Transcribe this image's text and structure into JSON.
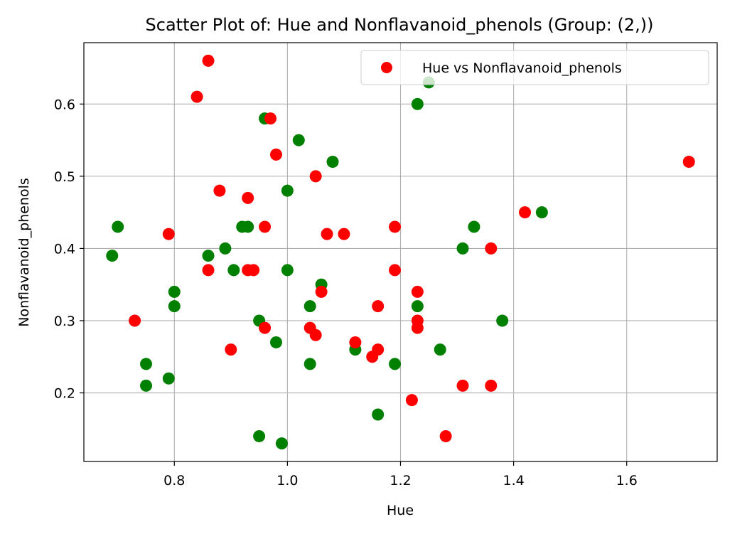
{
  "chart_data": {
    "type": "scatter",
    "title": "Scatter Plot of: Hue and Nonflavanoid_phenols (Group: (2,))",
    "xlabel": "Hue",
    "ylabel": "Nonflavanoid_phenols",
    "xlim": [
      0.64,
      1.76
    ],
    "ylim": [
      0.105,
      0.685
    ],
    "xticks": [
      0.8,
      1.0,
      1.2,
      1.4,
      1.6
    ],
    "yticks": [
      0.2,
      0.3,
      0.4,
      0.5,
      0.6
    ],
    "xtick_labels": [
      "0.8",
      "1.0",
      "1.2",
      "1.4",
      "1.6"
    ],
    "ytick_labels": [
      "0.2",
      "0.3",
      "0.4",
      "0.5",
      "0.6"
    ],
    "grid": true,
    "legend": {
      "position": "top-right",
      "entries": [
        "Hue vs Nonflavanoid_phenols"
      ]
    },
    "series": [
      {
        "color": "#008000",
        "points": [
          [
            0.69,
            0.39
          ],
          [
            0.7,
            0.43
          ],
          [
            0.75,
            0.24
          ],
          [
            0.75,
            0.21
          ],
          [
            0.79,
            0.22
          ],
          [
            0.8,
            0.34
          ],
          [
            0.8,
            0.32
          ],
          [
            0.86,
            0.39
          ],
          [
            0.89,
            0.4
          ],
          [
            0.905,
            0.37
          ],
          [
            0.92,
            0.43
          ],
          [
            0.93,
            0.43
          ],
          [
            0.95,
            0.3
          ],
          [
            0.95,
            0.14
          ],
          [
            0.96,
            0.58
          ],
          [
            0.98,
            0.27
          ],
          [
            0.99,
            0.13
          ],
          [
            1.0,
            0.48
          ],
          [
            1.0,
            0.37
          ],
          [
            1.02,
            0.55
          ],
          [
            1.04,
            0.32
          ],
          [
            1.04,
            0.24
          ],
          [
            1.06,
            0.35
          ],
          [
            1.08,
            0.52
          ],
          [
            1.12,
            0.26
          ],
          [
            1.16,
            0.17
          ],
          [
            1.19,
            0.24
          ],
          [
            1.23,
            0.6
          ],
          [
            1.23,
            0.32
          ],
          [
            1.25,
            0.63
          ],
          [
            1.27,
            0.26
          ],
          [
            1.31,
            0.4
          ],
          [
            1.33,
            0.43
          ],
          [
            1.38,
            0.3
          ],
          [
            1.45,
            0.45
          ]
        ]
      },
      {
        "name": "Hue vs Nonflavanoid_phenols",
        "color": "#ff0000",
        "points": [
          [
            0.73,
            0.3
          ],
          [
            0.79,
            0.42
          ],
          [
            0.84,
            0.61
          ],
          [
            0.86,
            0.66
          ],
          [
            0.86,
            0.37
          ],
          [
            0.88,
            0.48
          ],
          [
            0.9,
            0.26
          ],
          [
            0.93,
            0.47
          ],
          [
            0.93,
            0.37
          ],
          [
            0.94,
            0.37
          ],
          [
            0.96,
            0.43
          ],
          [
            0.96,
            0.29
          ],
          [
            0.97,
            0.58
          ],
          [
            0.98,
            0.53
          ],
          [
            1.04,
            0.29
          ],
          [
            1.05,
            0.5
          ],
          [
            1.05,
            0.28
          ],
          [
            1.06,
            0.34
          ],
          [
            1.07,
            0.42
          ],
          [
            1.1,
            0.42
          ],
          [
            1.12,
            0.27
          ],
          [
            1.15,
            0.25
          ],
          [
            1.16,
            0.32
          ],
          [
            1.16,
            0.26
          ],
          [
            1.19,
            0.43
          ],
          [
            1.19,
            0.37
          ],
          [
            1.22,
            0.19
          ],
          [
            1.23,
            0.34
          ],
          [
            1.23,
            0.3
          ],
          [
            1.23,
            0.29
          ],
          [
            1.28,
            0.14
          ],
          [
            1.31,
            0.21
          ],
          [
            1.36,
            0.4
          ],
          [
            1.36,
            0.21
          ],
          [
            1.42,
            0.45
          ],
          [
            1.71,
            0.52
          ]
        ]
      }
    ]
  }
}
